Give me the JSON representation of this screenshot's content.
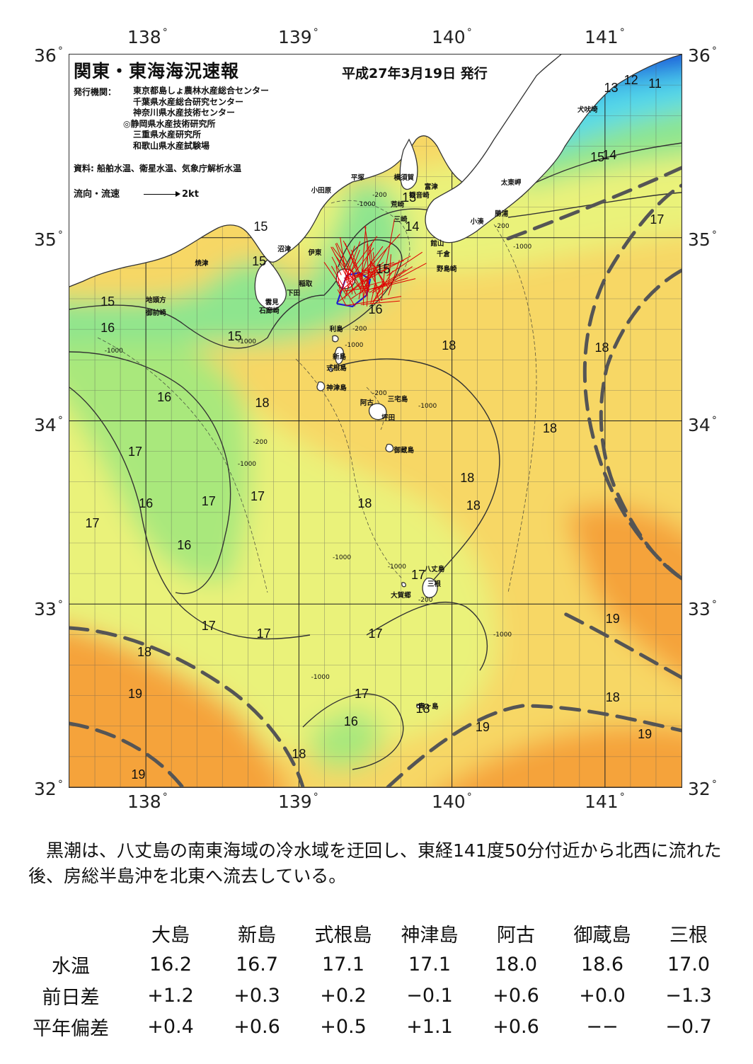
{
  "axes": {
    "lon_labels": [
      "138",
      "139",
      "140",
      "141"
    ],
    "lat_labels": [
      "36",
      "35",
      "34",
      "33",
      "32"
    ],
    "lon_range": [
      137.5,
      141.5
    ],
    "lat_range": [
      32,
      36
    ],
    "grid_step_deg": 0.1667
  },
  "map": {
    "title": "関東・東海海況速報",
    "issue_date": "平成27年3月19日 発行",
    "publisher_label": "発行機関：",
    "publishers": [
      "東京都島しょ農林水産総合センター",
      "千葉県水産総合研究センター",
      "神奈川県水産技術センター",
      "◎静岡県水産技術研究所",
      "三重県水産研究所",
      "和歌山県水産試験場"
    ],
    "data_source": "資料: 船舶水温、衛星水温、気象庁解析水温",
    "current_legend_label": "流向・流速",
    "current_legend_value": "2kt",
    "colors": {
      "land": "#ffffff",
      "coast": "#333333",
      "kuroshio_axis": "#555555",
      "current_vectors": "#e00000",
      "track": "#2020d0",
      "sst_11": "#1a4fd8",
      "sst_13": "#33a6e8",
      "sst_14": "#55d9ea",
      "sst_15": "#8ee58e",
      "sst_16": "#a9e87c",
      "sst_17": "#eaf27a",
      "sst_18": "#f7d765",
      "sst_19": "#f5a33a"
    },
    "place_names": [
      {
        "name": "犬吠埼",
        "lon": 140.82,
        "lat": 35.73
      },
      {
        "name": "太東岬",
        "lon": 140.32,
        "lat": 35.33
      },
      {
        "name": "勝浦",
        "lon": 140.28,
        "lat": 35.16
      },
      {
        "name": "小湊",
        "lon": 140.12,
        "lat": 35.12
      },
      {
        "name": "富津",
        "lon": 139.82,
        "lat": 35.31
      },
      {
        "name": "横須賀",
        "lon": 139.62,
        "lat": 35.36
      },
      {
        "name": "平塚",
        "lon": 139.34,
        "lat": 35.36
      },
      {
        "name": "小田原",
        "lon": 139.08,
        "lat": 35.29
      },
      {
        "name": "観音崎",
        "lon": 139.72,
        "lat": 35.26
      },
      {
        "name": "荒崎",
        "lon": 139.6,
        "lat": 35.21
      },
      {
        "name": "三崎",
        "lon": 139.62,
        "lat": 35.13
      },
      {
        "name": "館山",
        "lon": 139.86,
        "lat": 35.0
      },
      {
        "name": "千倉",
        "lon": 139.9,
        "lat": 34.94
      },
      {
        "name": "野島崎",
        "lon": 139.9,
        "lat": 34.86
      },
      {
        "name": "沼津",
        "lon": 138.86,
        "lat": 34.97
      },
      {
        "name": "伊東",
        "lon": 139.06,
        "lat": 34.95
      },
      {
        "name": "焼津",
        "lon": 138.32,
        "lat": 34.89
      },
      {
        "name": "稲取",
        "lon": 139.0,
        "lat": 34.78
      },
      {
        "name": "下田",
        "lon": 138.92,
        "lat": 34.73
      },
      {
        "name": "雲見",
        "lon": 138.78,
        "lat": 34.68
      },
      {
        "name": "石廊崎",
        "lon": 138.74,
        "lat": 34.63
      },
      {
        "name": "地頭方",
        "lon": 138.0,
        "lat": 34.69
      },
      {
        "name": "御前崎",
        "lon": 138.0,
        "lat": 34.62
      },
      {
        "name": "利島",
        "lon": 139.2,
        "lat": 34.53
      },
      {
        "name": "新島",
        "lon": 139.22,
        "lat": 34.38
      },
      {
        "name": "式根島",
        "lon": 139.18,
        "lat": 34.32
      },
      {
        "name": "神津島",
        "lon": 139.18,
        "lat": 34.21
      },
      {
        "name": "三宅島",
        "lon": 139.58,
        "lat": 34.15
      },
      {
        "name": "阿古",
        "lon": 139.4,
        "lat": 34.13
      },
      {
        "name": "坪田",
        "lon": 139.54,
        "lat": 34.05
      },
      {
        "name": "御蔵島",
        "lon": 139.62,
        "lat": 33.87
      },
      {
        "name": "八丈島",
        "lon": 139.82,
        "lat": 33.22
      },
      {
        "name": "三根",
        "lon": 139.84,
        "lat": 33.14
      },
      {
        "name": "大賀郷",
        "lon": 139.6,
        "lat": 33.08
      },
      {
        "name": "青ヶ島",
        "lon": 139.78,
        "lat": 32.47
      }
    ],
    "temperature_labels": [
      {
        "text": "12",
        "lon": 141.17,
        "lat": 35.86
      },
      {
        "text": "13",
        "lon": 141.04,
        "lat": 35.82
      },
      {
        "text": "11",
        "lon": 141.33,
        "lat": 35.84
      },
      {
        "text": "15",
        "lon": 140.95,
        "lat": 35.44
      },
      {
        "text": "14",
        "lon": 141.03,
        "lat": 35.45
      },
      {
        "text": "17",
        "lon": 141.34,
        "lat": 35.1
      },
      {
        "text": "13",
        "lon": 139.72,
        "lat": 35.22
      },
      {
        "text": "14",
        "lon": 139.74,
        "lat": 35.06
      },
      {
        "text": "15",
        "lon": 138.75,
        "lat": 35.06
      },
      {
        "text": "15",
        "lon": 138.74,
        "lat": 34.87
      },
      {
        "text": "15",
        "lon": 137.75,
        "lat": 34.65
      },
      {
        "text": "15",
        "lon": 139.55,
        "lat": 34.83
      },
      {
        "text": "16",
        "lon": 139.5,
        "lat": 34.61
      },
      {
        "text": "16",
        "lon": 137.75,
        "lat": 34.51
      },
      {
        "text": "15",
        "lon": 138.58,
        "lat": 34.46
      },
      {
        "text": "18",
        "lon": 139.98,
        "lat": 34.41
      },
      {
        "text": "18",
        "lon": 140.98,
        "lat": 34.4
      },
      {
        "text": "16",
        "lon": 138.12,
        "lat": 34.13
      },
      {
        "text": "18",
        "lon": 138.76,
        "lat": 34.1
      },
      {
        "text": "18",
        "lon": 140.64,
        "lat": 33.96
      },
      {
        "text": "17",
        "lon": 137.93,
        "lat": 33.83
      },
      {
        "text": "18",
        "lon": 140.1,
        "lat": 33.69
      },
      {
        "text": "17",
        "lon": 138.73,
        "lat": 33.59
      },
      {
        "text": "16",
        "lon": 138.0,
        "lat": 33.55
      },
      {
        "text": "17",
        "lon": 138.41,
        "lat": 33.56
      },
      {
        "text": "18",
        "lon": 139.43,
        "lat": 33.55
      },
      {
        "text": "18",
        "lon": 140.14,
        "lat": 33.54
      },
      {
        "text": "17",
        "lon": 137.65,
        "lat": 33.44
      },
      {
        "text": "16",
        "lon": 138.25,
        "lat": 33.32
      },
      {
        "text": "17",
        "lon": 139.78,
        "lat": 33.16
      },
      {
        "text": "19",
        "lon": 141.05,
        "lat": 32.92
      },
      {
        "text": "17",
        "lon": 138.41,
        "lat": 32.88
      },
      {
        "text": "17",
        "lon": 138.77,
        "lat": 32.84
      },
      {
        "text": "17",
        "lon": 139.5,
        "lat": 32.84
      },
      {
        "text": "18",
        "lon": 137.99,
        "lat": 32.74
      },
      {
        "text": "19",
        "lon": 137.93,
        "lat": 32.51
      },
      {
        "text": "17",
        "lon": 139.41,
        "lat": 32.51
      },
      {
        "text": "18",
        "lon": 141.05,
        "lat": 32.49
      },
      {
        "text": "18",
        "lon": 139.81,
        "lat": 32.43
      },
      {
        "text": "16",
        "lon": 139.34,
        "lat": 32.36
      },
      {
        "text": "19",
        "lon": 140.2,
        "lat": 32.33
      },
      {
        "text": "19",
        "lon": 141.26,
        "lat": 32.29
      },
      {
        "text": "18",
        "lon": 139.0,
        "lat": 32.18
      },
      {
        "text": "19",
        "lon": 137.95,
        "lat": 32.07
      }
    ],
    "depth_labels": [
      {
        "text": "-1000",
        "lon": 139.38,
        "lat": 35.2
      },
      {
        "text": "-200",
        "lon": 139.48,
        "lat": 35.25
      },
      {
        "text": "-1000",
        "lon": 137.73,
        "lat": 34.4
      },
      {
        "text": "-1000",
        "lon": 138.6,
        "lat": 34.45
      },
      {
        "text": "-1000",
        "lon": 139.3,
        "lat": 34.43
      },
      {
        "text": "-200",
        "lon": 139.35,
        "lat": 34.52
      },
      {
        "text": "-1000",
        "lon": 140.4,
        "lat": 34.97
      },
      {
        "text": "-200",
        "lon": 140.28,
        "lat": 35.08
      },
      {
        "text": "-200",
        "lon": 139.48,
        "lat": 34.17
      },
      {
        "text": "-1000",
        "lon": 139.78,
        "lat": 34.1
      },
      {
        "text": "-200",
        "lon": 138.7,
        "lat": 33.9
      },
      {
        "text": "-1000",
        "lon": 138.6,
        "lat": 33.78
      },
      {
        "text": "-1000",
        "lon": 139.22,
        "lat": 33.27
      },
      {
        "text": "-1000",
        "lon": 139.58,
        "lat": 33.22
      },
      {
        "text": "-200",
        "lon": 139.78,
        "lat": 33.04
      },
      {
        "text": "-1000",
        "lon": 140.27,
        "lat": 32.85
      },
      {
        "text": "-1000",
        "lon": 139.08,
        "lat": 32.62
      }
    ]
  },
  "summary": "黒潮は、八丈島の南東海域の冷水域を迂回し、東経141度50分付近から北西に流れた後、房総半島沖を北東へ流去している。",
  "obs_table": {
    "stations": [
      "大島",
      "新島",
      "式根島",
      "神津島",
      "阿古",
      "御蔵島",
      "三根"
    ],
    "rows": [
      {
        "label": "水温",
        "values": [
          "16.2",
          "16.7",
          "17.1",
          "17.1",
          "18.0",
          "18.6",
          "17.0"
        ]
      },
      {
        "label": "前日差",
        "values": [
          "+1.2",
          "+0.3",
          "+0.2",
          "−0.1",
          "+0.6",
          "+0.0",
          "−1.3"
        ]
      },
      {
        "label": "平年偏差",
        "values": [
          "+0.4",
          "+0.6",
          "+0.5",
          "+1.1",
          "+0.6",
          "−−",
          "−0.7"
        ]
      }
    ]
  }
}
